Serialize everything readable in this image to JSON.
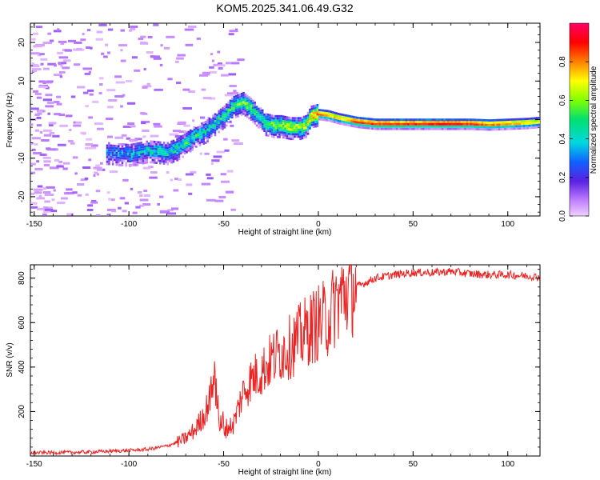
{
  "figure_title": "KOM5.2025.341.06.49.G32",
  "chart_data": [
    {
      "type": "heatmap",
      "title": "KOM5.2025.341.06.49.G32",
      "xlabel": "Height of straight line (km)",
      "ylabel": "Frequency (Hz)",
      "xlim": [
        -152,
        117
      ],
      "ylim": [
        -25,
        25
      ],
      "xticks": [
        -150,
        -100,
        -50,
        0,
        50,
        100
      ],
      "yticks": [
        -20,
        -10,
        0,
        10,
        20
      ],
      "colorbar": {
        "label": "Normalized spectral amplitude",
        "range": [
          0,
          1
        ],
        "ticks": [
          "0.0",
          "0.2",
          "0.4",
          "0.6",
          "0.8"
        ],
        "colormap": [
          "#f0d0ff",
          "#c080ff",
          "#5a20e0",
          "#1060ff",
          "#00d8e0",
          "#00e070",
          "#80ff00",
          "#ffff00",
          "#ff8000",
          "#ff0000",
          "#ff0066"
        ]
      },
      "ridge": {
        "x": [
          -110,
          -100,
          -90,
          -80,
          -75,
          -70,
          -65,
          -60,
          -55,
          -50,
          -45,
          -40,
          -36,
          -32,
          -28,
          -24,
          -20,
          -15,
          -10,
          -7,
          -4,
          0,
          5,
          10,
          15,
          20,
          30,
          40,
          50,
          60,
          70,
          80,
          90,
          100,
          110,
          117
        ],
        "y": [
          -8.5,
          -9,
          -8,
          -8.5,
          -7.5,
          -6,
          -4,
          -3,
          -1,
          1,
          3.5,
          4.5,
          3,
          1,
          -1,
          -1.5,
          -1.5,
          -2,
          -2,
          -1.5,
          1,
          1.5,
          1.2,
          0.5,
          0,
          -0.5,
          -1,
          -1,
          -1,
          -1,
          -1,
          -1,
          -1.2,
          -1,
          -0.8,
          -0.5
        ],
        "amp": [
          0.3,
          0.35,
          0.4,
          0.45,
          0.45,
          0.45,
          0.45,
          0.4,
          0.45,
          0.45,
          0.5,
          0.55,
          0.5,
          0.45,
          0.5,
          0.55,
          0.6,
          0.65,
          0.6,
          0.65,
          0.7,
          0.85,
          0.8,
          0.75,
          0.8,
          0.9,
          0.9,
          0.9,
          0.92,
          0.92,
          0.95,
          0.9,
          0.85,
          0.8,
          0.75,
          0.7
        ]
      }
    },
    {
      "type": "line",
      "xlabel": "Height of straight line (km)",
      "ylabel": "SNR (v/v)",
      "xlim": [
        -152,
        117
      ],
      "ylim": [
        0,
        860
      ],
      "xticks": [
        -150,
        -100,
        -50,
        0,
        50,
        100
      ],
      "yticks": [
        200,
        400,
        600,
        800
      ],
      "line_color": "#ee2222",
      "series": [
        {
          "name": "SNR",
          "x": [
            -152,
            -140,
            -120,
            -100,
            -90,
            -80,
            -75,
            -70,
            -65,
            -60,
            -57,
            -55,
            -53,
            -50,
            -45,
            -40,
            -35,
            -30,
            -25,
            -20,
            -15,
            -10,
            -5,
            0,
            5,
            10,
            15,
            20,
            25,
            30,
            40,
            50,
            60,
            70,
            80,
            90,
            100,
            110,
            117
          ],
          "values": [
            15,
            15,
            18,
            25,
            30,
            45,
            60,
            80,
            120,
            190,
            260,
            340,
            180,
            120,
            140,
            280,
            350,
            380,
            430,
            470,
            490,
            530,
            570,
            600,
            620,
            700,
            740,
            760,
            780,
            800,
            815,
            825,
            825,
            830,
            820,
            815,
            815,
            810,
            805
          ]
        }
      ]
    }
  ]
}
